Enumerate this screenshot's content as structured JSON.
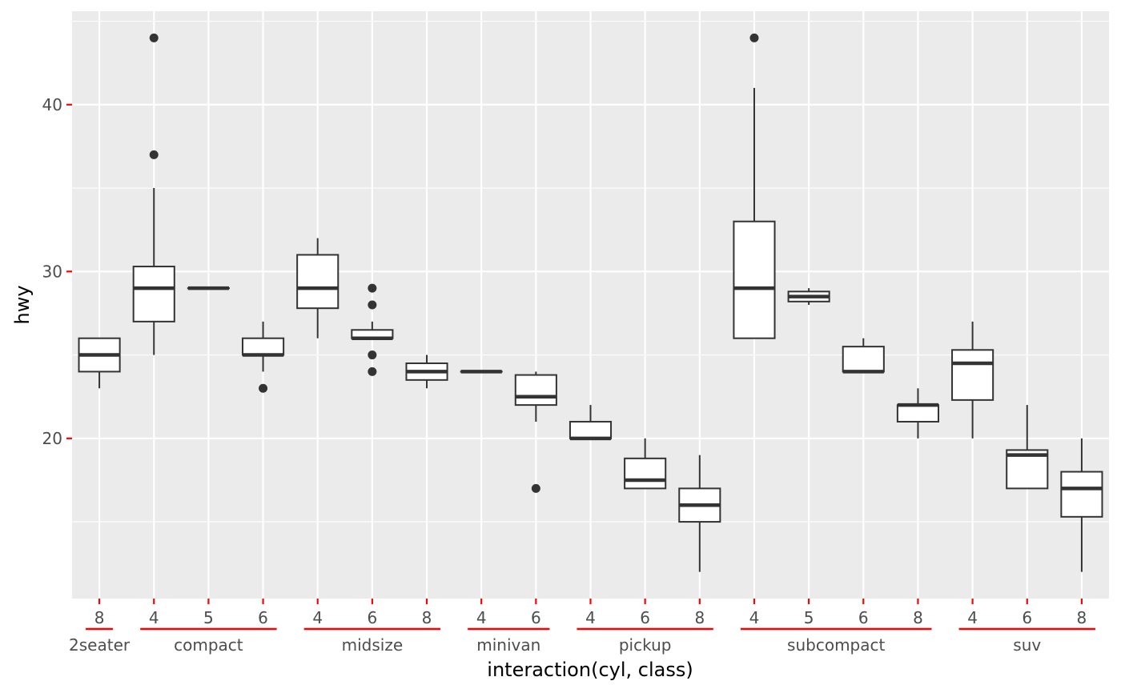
{
  "chart_data": {
    "type": "boxplot",
    "xlabel": "interaction(cyl, class)",
    "ylabel": "hwy",
    "ylim": [
      10.4,
      45.6
    ],
    "y_ticks": [
      20,
      30,
      40
    ],
    "grid": true,
    "colors": {
      "panel": "#ebebeb",
      "grid": "#ffffff",
      "box_line": "#333333",
      "box_fill": "#ffffff",
      "accent": "#ff0000",
      "tick_text": "#4d4d4d"
    },
    "boxes": [
      {
        "cyl": "8",
        "class": "2seater",
        "min": 23,
        "q1": 24,
        "median": 25,
        "q3": 26,
        "max": 26,
        "outliers": []
      },
      {
        "cyl": "4",
        "class": "compact",
        "min": 25,
        "q1": 27,
        "median": 29,
        "q3": 30.3,
        "max": 35,
        "outliers": [
          37,
          44
        ]
      },
      {
        "cyl": "5",
        "class": "compact",
        "min": 29,
        "q1": 29,
        "median": 29,
        "q3": 29,
        "max": 29,
        "outliers": []
      },
      {
        "cyl": "6",
        "class": "compact",
        "min": 24,
        "q1": 25,
        "median": 25,
        "q3": 26,
        "max": 27,
        "outliers": [
          23
        ]
      },
      {
        "cyl": "4",
        "class": "midsize",
        "min": 26,
        "q1": 27.8,
        "median": 29,
        "q3": 31,
        "max": 32,
        "outliers": []
      },
      {
        "cyl": "6",
        "class": "midsize",
        "min": 26,
        "q1": 26,
        "median": 26,
        "q3": 26.5,
        "max": 27,
        "outliers": [
          24,
          25,
          28,
          29
        ]
      },
      {
        "cyl": "8",
        "class": "midsize",
        "min": 23,
        "q1": 23.5,
        "median": 24,
        "q3": 24.5,
        "max": 25,
        "outliers": []
      },
      {
        "cyl": "4",
        "class": "minivan",
        "min": 24,
        "q1": 24,
        "median": 24,
        "q3": 24,
        "max": 24,
        "outliers": []
      },
      {
        "cyl": "6",
        "class": "minivan",
        "min": 21,
        "q1": 22,
        "median": 22.5,
        "q3": 23.8,
        "max": 24,
        "outliers": [
          17
        ]
      },
      {
        "cyl": "4",
        "class": "pickup",
        "min": 20,
        "q1": 20,
        "median": 20,
        "q3": 21,
        "max": 22,
        "outliers": []
      },
      {
        "cyl": "6",
        "class": "pickup",
        "min": 17,
        "q1": 17,
        "median": 17.5,
        "q3": 18.8,
        "max": 20,
        "outliers": []
      },
      {
        "cyl": "8",
        "class": "pickup",
        "min": 12,
        "q1": 15,
        "median": 16,
        "q3": 17,
        "max": 19,
        "outliers": []
      },
      {
        "cyl": "4",
        "class": "subcompact",
        "min": 26,
        "q1": 26,
        "median": 29,
        "q3": 33,
        "max": 41,
        "outliers": [
          44
        ]
      },
      {
        "cyl": "5",
        "class": "subcompact",
        "min": 28,
        "q1": 28.2,
        "median": 28.5,
        "q3": 28.8,
        "max": 29,
        "outliers": []
      },
      {
        "cyl": "6",
        "class": "subcompact",
        "min": 24,
        "q1": 24,
        "median": 24,
        "q3": 25.5,
        "max": 26,
        "outliers": []
      },
      {
        "cyl": "8",
        "class": "subcompact",
        "min": 20,
        "q1": 21,
        "median": 22,
        "q3": 22,
        "max": 23,
        "outliers": []
      },
      {
        "cyl": "4",
        "class": "suv",
        "min": 20,
        "q1": 22.3,
        "median": 24.5,
        "q3": 25.3,
        "max": 27,
        "outliers": []
      },
      {
        "cyl": "6",
        "class": "suv",
        "min": 17,
        "q1": 17,
        "median": 19,
        "q3": 19.3,
        "max": 22,
        "outliers": []
      },
      {
        "cyl": "8",
        "class": "suv",
        "min": 12,
        "q1": 15.3,
        "median": 17,
        "q3": 18,
        "max": 20,
        "outliers": []
      }
    ]
  }
}
